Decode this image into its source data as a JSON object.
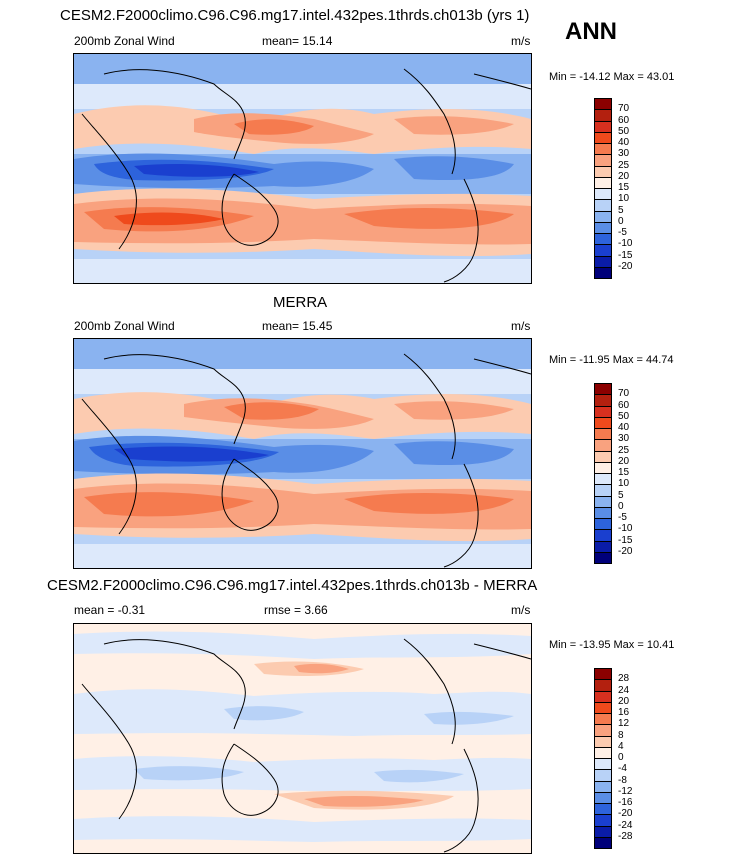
{
  "season": "ANN",
  "panels": [
    {
      "id": "model",
      "title": "CESM2.F2000climo.C96.C96.mg17.intel.432pes.1thrds.ch013b (yrs 1)",
      "left_label": "200mb Zonal Wind",
      "mid_label": "mean=  15.14",
      "units": "m/s",
      "minmax": "Min = -14.12 Max =  43.01",
      "levels": [
        "70",
        "60",
        "50",
        "40",
        "30",
        "25",
        "20",
        "15",
        "10",
        "5",
        "0",
        "-5",
        "-10",
        "-15",
        "-20"
      ],
      "colors": [
        "#8b0000",
        "#b3200f",
        "#d7301f",
        "#ef4a1c",
        "#f57b4f",
        "#f9a27f",
        "#fccbb0",
        "#fff0e6",
        "#dde9fb",
        "#b8d2f7",
        "#8ab3f0",
        "#5a8ee6",
        "#2d63dc",
        "#1a3fcf",
        "#0a1ca8",
        "#00007a"
      ]
    },
    {
      "id": "obs",
      "title": "MERRA",
      "left_label": "200mb Zonal Wind",
      "mid_label": "mean=  15.45",
      "units": "m/s",
      "minmax": "Min = -11.95 Max =  44.74",
      "levels": [
        "70",
        "60",
        "50",
        "40",
        "30",
        "25",
        "20",
        "15",
        "10",
        "5",
        "0",
        "-5",
        "-10",
        "-15",
        "-20"
      ],
      "colors": [
        "#8b0000",
        "#b3200f",
        "#d7301f",
        "#ef4a1c",
        "#f57b4f",
        "#f9a27f",
        "#fccbb0",
        "#fff0e6",
        "#dde9fb",
        "#b8d2f7",
        "#8ab3f0",
        "#5a8ee6",
        "#2d63dc",
        "#1a3fcf",
        "#0a1ca8",
        "#00007a"
      ]
    },
    {
      "id": "diff",
      "title": "CESM2.F2000climo.C96.C96.mg17.intel.432pes.1thrds.ch013b - MERRA",
      "left_label": "mean =  -0.31",
      "mid_label": "rmse =   3.66",
      "units": "m/s",
      "minmax": "Min = -13.95 Max =  10.41",
      "levels": [
        "28",
        "24",
        "20",
        "16",
        "12",
        "8",
        "4",
        "0",
        "-4",
        "-8",
        "-12",
        "-16",
        "-20",
        "-24",
        "-28"
      ],
      "colors": [
        "#8b0000",
        "#b3200f",
        "#d7301f",
        "#ef4a1c",
        "#f57b4f",
        "#f9a27f",
        "#fccbb0",
        "#fff0e6",
        "#dde9fb",
        "#b8d2f7",
        "#8ab3f0",
        "#5a8ee6",
        "#2d63dc",
        "#1a3fcf",
        "#0a1ca8",
        "#00007a"
      ]
    }
  ]
}
